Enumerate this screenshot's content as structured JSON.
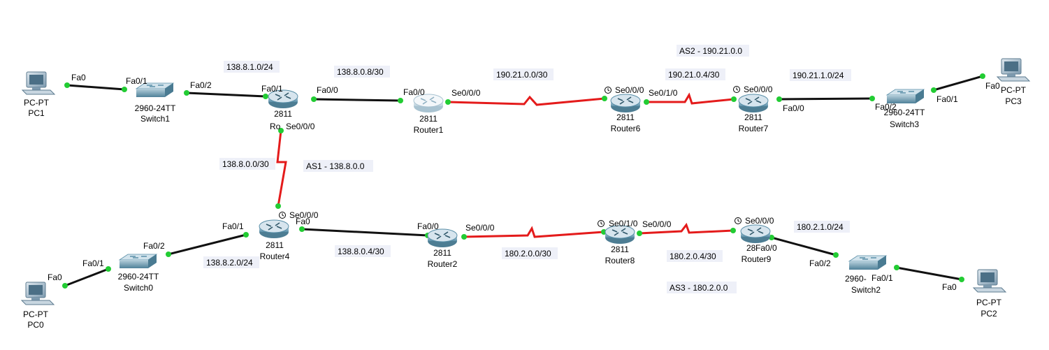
{
  "colors": {
    "copper": "#111111",
    "serial": "#e41b1b",
    "port": "#22cc33",
    "device": "#5a8fa8"
  },
  "devices": {
    "pc1": {
      "model": "PC-PT",
      "name": "PC1",
      "icon": "pc-icon"
    },
    "switch1": {
      "model": "2960-24TT",
      "name": "Switch1",
      "icon": "switch-icon"
    },
    "router0": {
      "model": "2811",
      "name": "Ro",
      "icon": "router-icon"
    },
    "router1": {
      "model": "2811",
      "name": "Router1",
      "icon": "router-icon"
    },
    "router6": {
      "model": "2811",
      "name": "Router6",
      "icon": "router-icon"
    },
    "router7": {
      "model": "2811",
      "name": "Router7",
      "icon": "router-icon"
    },
    "switch3": {
      "model": "2960-24TT",
      "name": "Switch3",
      "icon": "switch-icon"
    },
    "pc3": {
      "model": "PC-PT",
      "name": "PC3",
      "icon": "pc-icon"
    },
    "pc0": {
      "model": "PC-PT",
      "name": "PC0",
      "icon": "pc-icon"
    },
    "switch0": {
      "model": "2960-24TT",
      "name": "Switch0",
      "icon": "switch-icon"
    },
    "router4": {
      "model": "2811",
      "name": "Router4",
      "icon": "router-icon"
    },
    "router2": {
      "model": "2811",
      "name": "Router2",
      "icon": "router-icon"
    },
    "router8": {
      "model": "2811",
      "name": "Router8",
      "icon": "router-icon"
    },
    "router9": {
      "model": "28",
      "name": "Router9",
      "icon": "router-icon"
    },
    "switch2": {
      "model": "2960-",
      "name": "Switch2",
      "icon": "switch-icon"
    },
    "pc2": {
      "model": "PC-PT",
      "name": "PC2",
      "icon": "pc-icon"
    }
  },
  "networks": {
    "n1": "138.8.1.0/24",
    "n2": "138.8.0.8/30",
    "n3": "190.21.0.0/30",
    "n4": "AS2 - 190.21.0.0",
    "n5": "190.21.0.4/30",
    "n6": "190.21.1.0/24",
    "n7": "138.8.0.0/30",
    "n8": "AS1 - 138.8.0.0",
    "n9": "138.8.2.0/24",
    "n10": "138.8.0.4/30",
    "n11": "180.2.0.0/30",
    "n12": "180.2.0.4/30",
    "n13": "180.2.1.0/24",
    "n14": "AS3 - 180.2.0.0"
  },
  "ports": {
    "p1": "Fa0",
    "p2": "Fa0/1",
    "p3": "Fa0/2",
    "p4": "Fa0/1",
    "p5": "Fa0/0",
    "p6": "Se0/0/0",
    "p7": "Fa0/0",
    "p8": "Se0/0/0",
    "p9": "Se0/0/0",
    "p10": "Se0/1/0",
    "p11": "Se0/0/0",
    "p12": "Fa0/0",
    "p13": "Fa0/2",
    "p14": "Fa0/1",
    "p15": "Fa0",
    "p16": "Se0/0/0",
    "p17": "Fa0/1",
    "p18": "Fa0/2",
    "p19": "Fa0/1",
    "p20": "Fa0",
    "p21": "Fa0/0",
    "p22": "Se0/0/0",
    "p23": "Se0/1/0",
    "p24": "Se0/0/0",
    "p25": "Se0/0/0",
    "p26": "Fa0/0",
    "p27": "Fa0/2",
    "p28": "Fa0/1",
    "p29": "Fa0",
    "p30": "Fa0"
  }
}
